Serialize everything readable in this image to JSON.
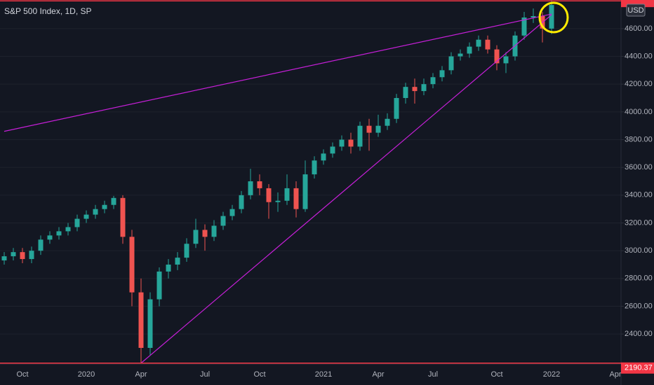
{
  "chart_data": {
    "type": "candlestick",
    "title": "S&P 500 Index, 1D, SP",
    "currency": "USD",
    "categories": [
      null,
      null,
      "Oct",
      null,
      null,
      null,
      null,
      null,
      null,
      "2020",
      null,
      null,
      null,
      null,
      null,
      "Apr",
      null,
      null,
      null,
      null,
      null,
      null,
      "Jul",
      null,
      null,
      null,
      null,
      null,
      "Oct",
      null,
      null,
      null,
      null,
      null,
      null,
      "2021",
      null,
      null,
      null,
      null,
      null,
      "Apr",
      null,
      null,
      null,
      null,
      null,
      "Jul",
      null,
      null,
      null,
      null,
      null,
      null,
      "Oct",
      null,
      null,
      null,
      null,
      null,
      "2022",
      null,
      null,
      null,
      null,
      null,
      null,
      "Apr"
    ],
    "open": [
      2930,
      2960,
      2990,
      2940,
      3000,
      3080,
      3110,
      3140,
      3170,
      3230,
      3260,
      3300,
      3330,
      3380,
      3100,
      2700,
      2300,
      2650,
      2850,
      2900,
      2950,
      3050,
      3150,
      3100,
      3180,
      3250,
      3300,
      3400,
      3500,
      3450,
      3350,
      3360,
      3450,
      3300,
      3550,
      3650,
      3700,
      3750,
      3800,
      3750,
      3900,
      3850,
      3900,
      3950,
      4100,
      4180,
      4150,
      4200,
      4250,
      4300,
      4400,
      4420,
      4470,
      4520,
      4450,
      4350,
      4400,
      4550,
      4680,
      4690,
      4600,
      null,
      null,
      null,
      null,
      null,
      null,
      null
    ],
    "high": [
      2990,
      3020,
      3020,
      3030,
      3110,
      3140,
      3170,
      3200,
      3260,
      3290,
      3330,
      3360,
      3395,
      3400,
      3150,
      2800,
      2700,
      2880,
      2940,
      2990,
      3090,
      3230,
      3190,
      3220,
      3280,
      3330,
      3430,
      3590,
      3550,
      3480,
      3420,
      3550,
      3500,
      3650,
      3680,
      3730,
      3780,
      3830,
      3850,
      3930,
      3950,
      3980,
      3990,
      4130,
      4210,
      4240,
      4240,
      4280,
      4330,
      4430,
      4450,
      4500,
      4550,
      4550,
      4480,
      4430,
      4580,
      4720,
      4745,
      4720,
      4808,
      null,
      null,
      null,
      null,
      null,
      null,
      null
    ],
    "low": [
      2900,
      2930,
      2910,
      2910,
      2970,
      3050,
      3080,
      3110,
      3140,
      3200,
      3230,
      3270,
      3300,
      3050,
      2600,
      2190.37,
      2250,
      2600,
      2800,
      2860,
      2920,
      3020,
      3000,
      3070,
      3150,
      3220,
      3270,
      3370,
      3400,
      3230,
      3280,
      3330,
      3240,
      3280,
      3520,
      3620,
      3670,
      3720,
      3700,
      3720,
      3720,
      3820,
      3870,
      3920,
      4060,
      4060,
      4120,
      4170,
      4220,
      4270,
      4370,
      4390,
      4440,
      4420,
      4300,
      4280,
      4370,
      4520,
      4640,
      4500,
      4560,
      null,
      null,
      null,
      null,
      null,
      null,
      null
    ],
    "close": [
      2960,
      2990,
      2940,
      3000,
      3080,
      3110,
      3140,
      3170,
      3230,
      3260,
      3300,
      3330,
      3380,
      3100,
      2700,
      2300,
      2650,
      2850,
      2900,
      2950,
      3050,
      3150,
      3100,
      3180,
      3250,
      3300,
      3400,
      3500,
      3450,
      3350,
      3360,
      3450,
      3300,
      3550,
      3650,
      3700,
      3750,
      3800,
      3750,
      3900,
      3850,
      3900,
      3950,
      4100,
      4180,
      4150,
      4200,
      4250,
      4300,
      4400,
      4420,
      4470,
      4520,
      4450,
      4350,
      4400,
      4550,
      4680,
      4690,
      4600,
      4770,
      null,
      null,
      null,
      null,
      null,
      null,
      null
    ],
    "up_color": "#26a69a",
    "down_color": "#ef5350",
    "ylim": [
      2184,
      4806
    ],
    "yticks": [
      {
        "value": 2400,
        "label": "2400.00"
      },
      {
        "value": 2600,
        "label": "2600.00"
      },
      {
        "value": 2800,
        "label": "2800.00"
      },
      {
        "value": 3000,
        "label": "3000.00"
      },
      {
        "value": 3200,
        "label": "3200.00"
      },
      {
        "value": 3400,
        "label": "3400.00"
      },
      {
        "value": 3600,
        "label": "3600.00"
      },
      {
        "value": 3800,
        "label": "3800.00"
      },
      {
        "value": 4000,
        "label": "4000.00"
      },
      {
        "value": 4200,
        "label": "4200.00"
      },
      {
        "value": 4400,
        "label": "4400.00"
      },
      {
        "value": 4600,
        "label": "4600.00"
      }
    ],
    "grid": true,
    "trendlines": [
      {
        "color": "#c61fd8",
        "points": [
          [
            0,
            3860
          ],
          [
            60,
            4705
          ]
        ]
      },
      {
        "color": "#c61fd8",
        "points": [
          [
            15,
            2190.37
          ],
          [
            60,
            4700
          ]
        ]
      }
    ],
    "price_lines": [
      {
        "value": 2190.37,
        "label": "2190.37",
        "color": "#f23645"
      },
      {
        "value": 4800,
        "color": "#f23645"
      }
    ]
  }
}
